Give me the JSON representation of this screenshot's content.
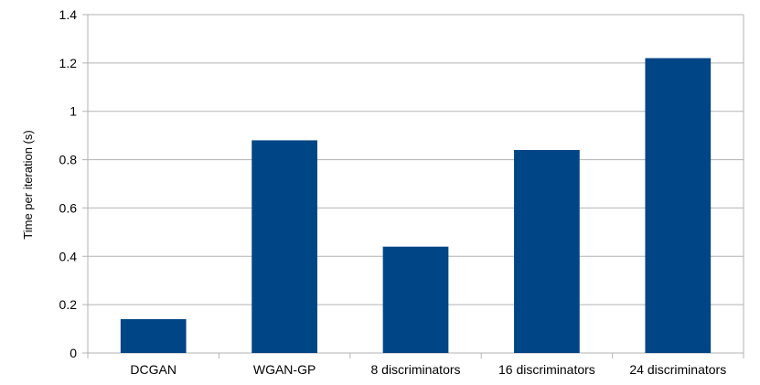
{
  "chart_data": {
    "type": "bar",
    "title": "",
    "xlabel": "",
    "ylabel": "Time per iteration (s)",
    "categories": [
      "DCGAN",
      "WGAN-GP",
      "8 discriminators",
      "16 discriminators",
      "24 discriminators"
    ],
    "values": [
      0.14,
      0.88,
      0.44,
      0.84,
      1.22
    ],
    "ylim": [
      0,
      1.4
    ],
    "yticks": [
      "0",
      "0.2",
      "0.4",
      "0.6",
      "0.8",
      "1",
      "1.2",
      "1.4"
    ],
    "grid": true,
    "legend": "none",
    "bar_color": "#004586",
    "grid_color": "#b3b3b3"
  }
}
